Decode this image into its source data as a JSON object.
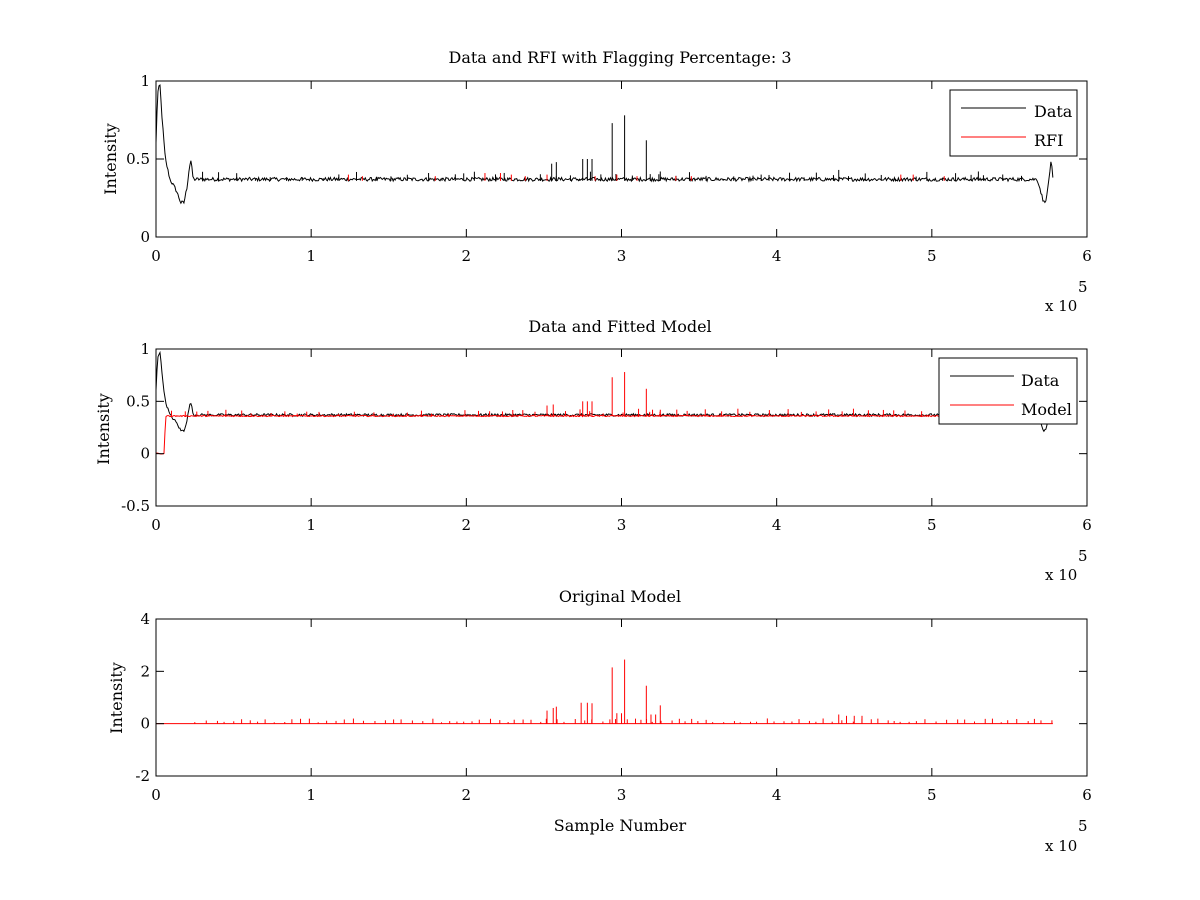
{
  "chart_data": [
    {
      "type": "line",
      "title": "Data and RFI with Flagging Percentage: 3",
      "xlabel": "",
      "ylabel": "Intensity",
      "xlim": [
        0,
        600000
      ],
      "ylim": [
        0,
        1
      ],
      "xticks": [
        0,
        100000,
        200000,
        300000,
        400000,
        500000,
        600000
      ],
      "xtick_labels": [
        "0",
        "1",
        "2",
        "3",
        "4",
        "5",
        "6"
      ],
      "yticks": [
        0,
        0.5,
        1
      ],
      "ytick_labels": [
        "0",
        "0.5",
        "1"
      ],
      "x_multiplier": {
        "base": "x 10",
        "exponent": "5"
      },
      "grid": false,
      "legend_position": "top-right",
      "series": [
        {
          "name": "Data",
          "color": "#000000",
          "baseline": 0.36,
          "x_max": 578000,
          "envelope": [
            [
              0,
              0.6
            ],
            [
              1000,
              0.92
            ],
            [
              2500,
              0.98
            ],
            [
              4000,
              0.75
            ],
            [
              6000,
              0.5
            ],
            [
              9000,
              0.37
            ],
            [
              13000,
              0.3
            ],
            [
              16000,
              0.22
            ],
            [
              18000,
              0.22
            ],
            [
              20000,
              0.32
            ],
            [
              21500,
              0.45
            ],
            [
              22500,
              0.49
            ],
            [
              24000,
              0.37
            ],
            [
              568000,
              0.37
            ],
            [
              570000,
              0.3
            ],
            [
              572000,
              0.22
            ],
            [
              574000,
              0.25
            ],
            [
              576000,
              0.42
            ],
            [
              577000,
              0.49
            ],
            [
              578000,
              0.37
            ]
          ],
          "spikes": [
            [
              255000,
              0.47
            ],
            [
              258000,
              0.48
            ],
            [
              275000,
              0.5
            ],
            [
              278000,
              0.5
            ],
            [
              281000,
              0.5
            ],
            [
              294000,
              0.73
            ],
            [
              302000,
              0.78
            ],
            [
              316000,
              0.62
            ],
            [
              325000,
              0.42
            ],
            [
              440000,
              0.43
            ],
            [
              530000,
              0.42
            ]
          ]
        },
        {
          "name": "RFI",
          "color": "#ff0000",
          "spikes": [
            [
              124000,
              0.4
            ],
            [
              133000,
              0.39
            ],
            [
              180000,
              0.39
            ],
            [
              212000,
              0.41
            ],
            [
              222000,
              0.41
            ],
            [
              229000,
              0.4
            ],
            [
              238000,
              0.39
            ],
            [
              252000,
              0.4
            ],
            [
              283000,
              0.39
            ],
            [
              297000,
              0.4
            ],
            [
              310000,
              0.39
            ],
            [
              335000,
              0.39
            ],
            [
              345000,
              0.39
            ],
            [
              480000,
              0.4
            ],
            [
              488000,
              0.4
            ],
            [
              508000,
              0.39
            ]
          ]
        }
      ]
    },
    {
      "type": "line",
      "title": "Data and Fitted Model",
      "xlabel": "",
      "ylabel": "Intensity",
      "xlim": [
        0,
        600000
      ],
      "ylim": [
        -0.5,
        1
      ],
      "xticks": [
        0,
        100000,
        200000,
        300000,
        400000,
        500000,
        600000
      ],
      "xtick_labels": [
        "0",
        "1",
        "2",
        "3",
        "4",
        "5",
        "6"
      ],
      "yticks": [
        -0.5,
        0,
        0.5,
        1
      ],
      "ytick_labels": [
        "-0.5",
        "0",
        "0.5",
        "1"
      ],
      "x_multiplier": {
        "base": "x 10",
        "exponent": "5"
      },
      "grid": false,
      "legend_position": "top-right",
      "series": [
        {
          "name": "Data",
          "color": "#000000",
          "baseline": 0.36,
          "x_max": 578000,
          "envelope": [
            [
              0,
              0.6
            ],
            [
              1000,
              0.92
            ],
            [
              2500,
              0.98
            ],
            [
              4000,
              0.75
            ],
            [
              6000,
              0.5
            ],
            [
              9000,
              0.37
            ],
            [
              13000,
              0.3
            ],
            [
              16000,
              0.22
            ],
            [
              18000,
              0.22
            ],
            [
              20000,
              0.32
            ],
            [
              21500,
              0.45
            ],
            [
              22500,
              0.49
            ],
            [
              24000,
              0.37
            ],
            [
              568000,
              0.37
            ],
            [
              570000,
              0.3
            ],
            [
              572000,
              0.22
            ],
            [
              574000,
              0.25
            ],
            [
              576000,
              0.42
            ],
            [
              577000,
              0.49
            ],
            [
              578000,
              0.37
            ]
          ]
        },
        {
          "name": "Model",
          "color": "#ff0000",
          "baseline": 0.36,
          "x_max": 578000,
          "envelope": [
            [
              0,
              0.0
            ],
            [
              5500,
              0.0
            ],
            [
              6000,
              0.36
            ],
            [
              578000,
              0.36
            ]
          ],
          "spikes": [
            [
              252000,
              0.46
            ],
            [
              256000,
              0.47
            ],
            [
              275000,
              0.5
            ],
            [
              278000,
              0.5
            ],
            [
              281000,
              0.5
            ],
            [
              294000,
              0.73
            ],
            [
              302000,
              0.78
            ],
            [
              316000,
              0.62
            ],
            [
              320000,
              0.42
            ],
            [
              325000,
              0.42
            ]
          ]
        }
      ]
    },
    {
      "type": "line",
      "title": "Original Model",
      "xlabel": "Sample Number",
      "ylabel": "Intensity",
      "xlim": [
        0,
        600000
      ],
      "ylim": [
        -2,
        4
      ],
      "xticks": [
        0,
        100000,
        200000,
        300000,
        400000,
        500000,
        600000
      ],
      "xtick_labels": [
        "0",
        "1",
        "2",
        "3",
        "4",
        "5",
        "6"
      ],
      "yticks": [
        -2,
        0,
        2,
        4
      ],
      "ytick_labels": [
        "-2",
        "0",
        "2",
        "4"
      ],
      "x_multiplier": {
        "base": "x 10",
        "exponent": "5"
      },
      "grid": false,
      "legend_position": "none",
      "series": [
        {
          "color": "#ff0000",
          "baseline": 0.0,
          "x_min": 0,
          "x_max": 578000,
          "spikes": [
            [
              252000,
              0.5
            ],
            [
              256000,
              0.6
            ],
            [
              258000,
              0.65
            ],
            [
              274000,
              0.8
            ],
            [
              278000,
              0.8
            ],
            [
              281000,
              0.78
            ],
            [
              294000,
              2.15
            ],
            [
              297000,
              0.4
            ],
            [
              300000,
              0.4
            ],
            [
              302000,
              2.45
            ],
            [
              316000,
              1.45
            ],
            [
              319000,
              0.35
            ],
            [
              322000,
              0.35
            ],
            [
              325000,
              0.7
            ],
            [
              440000,
              0.35
            ],
            [
              445000,
              0.3
            ],
            [
              450000,
              0.3
            ],
            [
              455000,
              0.3
            ]
          ]
        }
      ]
    }
  ]
}
